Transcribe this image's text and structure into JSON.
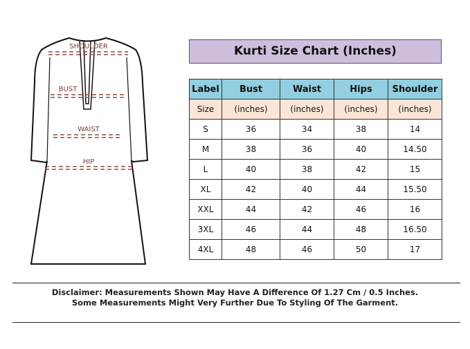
{
  "title": "Kurti Size Chart (Inches)",
  "diagram_labels": [
    "SHOULDER",
    "BUST",
    "WAIST",
    "HIP"
  ],
  "colors": {
    "title_bg": "#cdbfdd",
    "header_bg": "#93cfe0",
    "unit_row_bg": "#fbe5d6",
    "measure_line": "#8b4a40"
  },
  "table": {
    "headers": [
      "Label",
      "Bust",
      "Waist",
      "Hips",
      "Shoulder"
    ],
    "units": [
      "Size",
      "(inches)",
      "(inches)",
      "(inches)",
      "(inches)"
    ],
    "rows": [
      [
        "S",
        "36",
        "34",
        "38",
        "14"
      ],
      [
        "M",
        "38",
        "36",
        "40",
        "14.50"
      ],
      [
        "L",
        "40",
        "38",
        "42",
        "15"
      ],
      [
        "XL",
        "42",
        "40",
        "44",
        "15.50"
      ],
      [
        "XXL",
        "44",
        "42",
        "46",
        "16"
      ],
      [
        "3XL",
        "46",
        "44",
        "48",
        "16.50"
      ],
      [
        "4XL",
        "48",
        "46",
        "50",
        "17"
      ]
    ]
  },
  "disclaimer": [
    "Disclaimer: Measurements Shown May Have A Difference Of 1.27 Cm / 0.5 Inches.",
    "Some Measurements Might Very Further Due To Styling Of The Garment."
  ]
}
